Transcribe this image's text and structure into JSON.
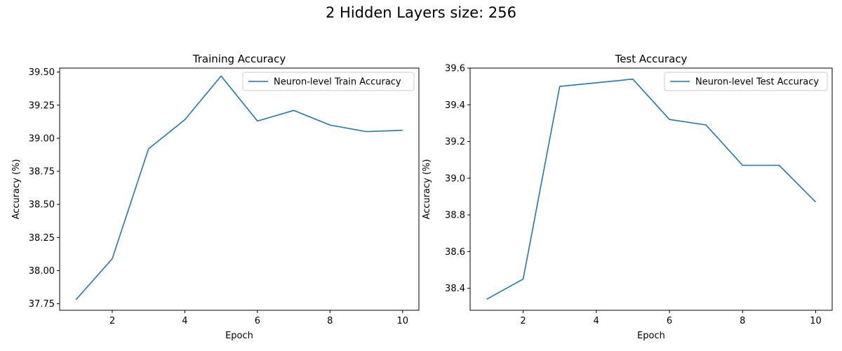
{
  "figure_title": "2 Hidden Layers size: 256",
  "colors": {
    "line": "#1f77b4",
    "axes": "#000000",
    "legend_border": "#cccccc"
  },
  "chart_data": [
    {
      "type": "line",
      "title": "Training Accuracy",
      "xlabel": "Epoch",
      "ylabel": "Accuracy (%)",
      "xlim": [
        0.55,
        10.45
      ],
      "ylim": [
        37.7,
        39.53
      ],
      "xticks": [
        2,
        4,
        6,
        8,
        10
      ],
      "xtick_labels": [
        "2",
        "4",
        "6",
        "8",
        "10"
      ],
      "yticks": [
        37.75,
        38.0,
        38.25,
        38.5,
        38.75,
        39.0,
        39.25,
        39.5
      ],
      "ytick_labels": [
        "37.75",
        "38.00",
        "38.25",
        "38.50",
        "38.75",
        "39.00",
        "39.25",
        "39.50"
      ],
      "grid": false,
      "legend_position": "upper right",
      "series": [
        {
          "name": "Neuron-level Train Accuracy",
          "x": [
            1,
            2,
            3,
            4,
            5,
            6,
            7,
            8,
            9,
            10
          ],
          "y": [
            37.78,
            38.09,
            38.92,
            39.14,
            39.47,
            39.13,
            39.21,
            39.1,
            39.05,
            39.06
          ]
        }
      ]
    },
    {
      "type": "line",
      "title": "Test Accuracy",
      "xlabel": "Epoch",
      "ylabel": "Accuracy (%)",
      "xlim": [
        0.55,
        10.45
      ],
      "ylim": [
        38.28,
        39.6
      ],
      "xticks": [
        2,
        4,
        6,
        8,
        10
      ],
      "xtick_labels": [
        "2",
        "4",
        "6",
        "8",
        "10"
      ],
      "yticks": [
        38.4,
        38.6,
        38.8,
        39.0,
        39.2,
        39.4,
        39.6
      ],
      "ytick_labels": [
        "38.4",
        "38.6",
        "38.8",
        "39.0",
        "39.2",
        "39.4",
        "39.6"
      ],
      "grid": false,
      "legend_position": "upper right",
      "series": [
        {
          "name": "Neuron-level Test Accuracy",
          "x": [
            1,
            2,
            3,
            4,
            5,
            6,
            7,
            8,
            9,
            10
          ],
          "y": [
            38.34,
            38.45,
            39.5,
            39.52,
            39.54,
            39.32,
            39.29,
            39.07,
            39.07,
            38.87
          ]
        }
      ]
    }
  ]
}
